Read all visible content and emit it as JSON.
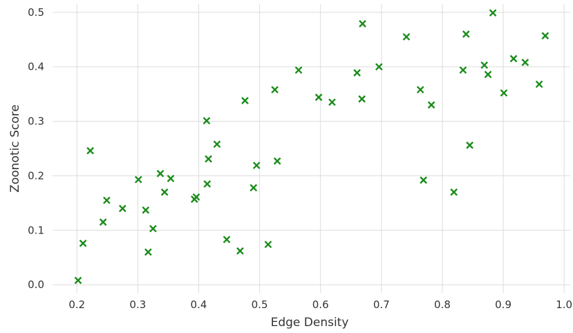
{
  "chart_data": {
    "type": "scatter",
    "xlabel": "Edge Density",
    "ylabel": "Zoonotic Score",
    "xlim": [
      0.16,
      1.01
    ],
    "ylim": [
      -0.015,
      0.515
    ],
    "xticks": [
      0.2,
      0.3,
      0.4,
      0.5,
      0.6,
      0.7,
      0.8,
      0.9,
      1.0
    ],
    "xtick_labels": [
      "0.2",
      "0.3",
      "0.4",
      "0.5",
      "0.6",
      "0.7",
      "0.8",
      "0.9",
      "1.0"
    ],
    "yticks": [
      0.0,
      0.1,
      0.2,
      0.3,
      0.4,
      0.5
    ],
    "ytick_labels": [
      "0.0",
      "0.1",
      "0.2",
      "0.3",
      "0.4",
      "0.5"
    ],
    "grid": true,
    "marker": "x",
    "color": "#1a8c1a",
    "series": [
      {
        "points": [
          [
            0.202,
            0.008
          ],
          [
            0.21,
            0.076
          ],
          [
            0.222,
            0.246
          ],
          [
            0.243,
            0.115
          ],
          [
            0.249,
            0.155
          ],
          [
            0.275,
            0.14
          ],
          [
            0.301,
            0.193
          ],
          [
            0.313,
            0.137
          ],
          [
            0.317,
            0.06
          ],
          [
            0.325,
            0.103
          ],
          [
            0.337,
            0.204
          ],
          [
            0.344,
            0.17
          ],
          [
            0.354,
            0.195
          ],
          [
            0.393,
            0.157
          ],
          [
            0.396,
            0.161
          ],
          [
            0.413,
            0.301
          ],
          [
            0.414,
            0.185
          ],
          [
            0.416,
            0.231
          ],
          [
            0.43,
            0.258
          ],
          [
            0.446,
            0.083
          ],
          [
            0.468,
            0.062
          ],
          [
            0.476,
            0.338
          ],
          [
            0.49,
            0.178
          ],
          [
            0.495,
            0.219
          ],
          [
            0.514,
            0.074
          ],
          [
            0.525,
            0.358
          ],
          [
            0.529,
            0.227
          ],
          [
            0.564,
            0.394
          ],
          [
            0.597,
            0.344
          ],
          [
            0.619,
            0.335
          ],
          [
            0.66,
            0.389
          ],
          [
            0.668,
            0.341
          ],
          [
            0.669,
            0.479
          ],
          [
            0.696,
            0.4
          ],
          [
            0.741,
            0.455
          ],
          [
            0.764,
            0.358
          ],
          [
            0.769,
            0.192
          ],
          [
            0.782,
            0.33
          ],
          [
            0.819,
            0.17
          ],
          [
            0.834,
            0.394
          ],
          [
            0.839,
            0.46
          ],
          [
            0.845,
            0.256
          ],
          [
            0.869,
            0.403
          ],
          [
            0.875,
            0.386
          ],
          [
            0.883,
            0.499
          ],
          [
            0.901,
            0.352
          ],
          [
            0.917,
            0.415
          ],
          [
            0.936,
            0.408
          ],
          [
            0.959,
            0.368
          ],
          [
            0.969,
            0.457
          ]
        ]
      }
    ]
  }
}
